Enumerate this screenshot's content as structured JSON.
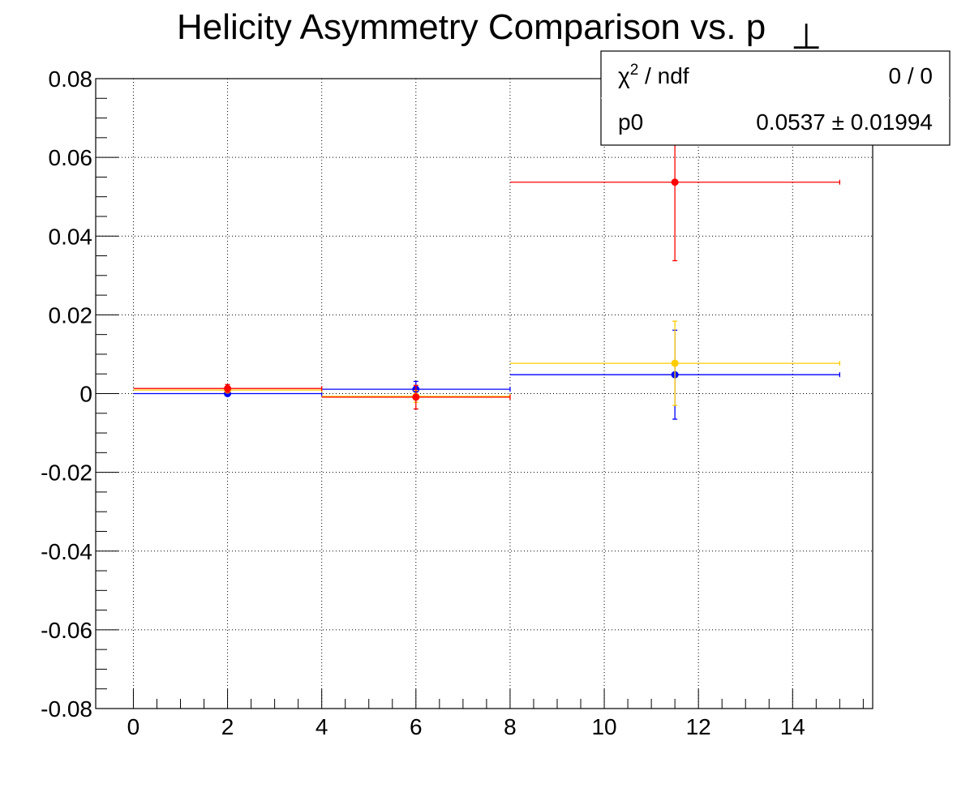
{
  "chart_data": {
    "type": "scatter",
    "title": "Helicity Asymmetry Comparison vs. p",
    "title_subscript": "⊥",
    "xlabel": "",
    "ylabel": "",
    "xlim": [
      -0.8,
      15.7
    ],
    "ylim": [
      -0.08,
      0.08
    ],
    "x_ticks": [
      0,
      2,
      4,
      6,
      8,
      10,
      12,
      14
    ],
    "x_tick_labels": [
      "0",
      "2",
      "4",
      "6",
      "8",
      "10",
      "12",
      "14"
    ],
    "y_ticks": [
      0.08,
      0.06,
      0.04,
      0.02,
      0,
      -0.02,
      -0.04,
      -0.06,
      -0.08
    ],
    "y_tick_labels": [
      "0.08",
      "0.06",
      "0.04",
      "0.02",
      "0",
      "-0.02",
      "-0.04",
      "-0.06",
      "-0.08"
    ],
    "grid": true,
    "series": [
      {
        "color": "#0000ff",
        "points": [
          {
            "x": 2,
            "xlow": 0,
            "xhigh": 4,
            "y": 0.0,
            "yerr": 0.0005
          },
          {
            "x": 6,
            "xlow": 4,
            "xhigh": 8,
            "y": 0.0011,
            "yerr": 0.002
          },
          {
            "x": 11.5,
            "xlow": 8,
            "xhigh": 15,
            "y": 0.0048,
            "yerr": 0.0113
          }
        ]
      },
      {
        "color": "#ffcc00",
        "points": [
          {
            "x": 2,
            "xlow": 0,
            "xhigh": 4,
            "y": 0.0009,
            "yerr": 0.0005
          },
          {
            "x": 6,
            "xlow": 4,
            "xhigh": 8,
            "y": -0.0007,
            "yerr": 0.0015
          },
          {
            "x": 11.5,
            "xlow": 8,
            "xhigh": 15,
            "y": 0.0077,
            "yerr": 0.0107
          }
        ]
      },
      {
        "color": "#ff0000",
        "points": [
          {
            "x": 2,
            "xlow": 0,
            "xhigh": 4,
            "y": 0.0013,
            "yerr": 0.001
          },
          {
            "x": 6,
            "xlow": 4,
            "xhigh": 8,
            "y": -0.0009,
            "yerr": 0.003
          },
          {
            "x": 11.5,
            "xlow": 8,
            "xhigh": 15,
            "y": 0.0537,
            "yerr": 0.01994
          }
        ]
      }
    ],
    "stats_box": {
      "placement": "top-right",
      "rows": [
        {
          "label": "χ",
          "label_superscript": "2",
          "label_suffix": " / ndf",
          "value": "0 / 0"
        },
        {
          "label": "p0",
          "label_superscript": "",
          "label_suffix": "",
          "value": "0.0537 ± 0.01994"
        }
      ]
    }
  }
}
